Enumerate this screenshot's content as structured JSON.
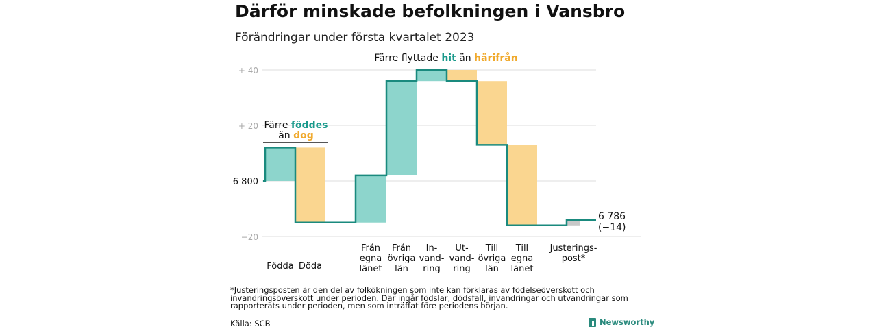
{
  "title": "Därför minskade befolkningen i Vansbro",
  "subtitle": "Förändringar under första kvartalet 2023",
  "colors": {
    "increase": "#8dd5cc",
    "decrease": "#fad690",
    "adjustment": "#c8c8c8",
    "line": "#1a8a7e",
    "grid": "#dddddd",
    "tick_label": "#aaaaaa",
    "teal_text": "#1a9a8c",
    "orange_text": "#f0a92c"
  },
  "chart_data": {
    "type": "waterfall",
    "start_value": 6800,
    "start_label": "6 800",
    "end_value": 6786,
    "end_label": "6 786",
    "end_change_label": "(−14)",
    "y_axis_label_ticks": [
      {
        "value": 40,
        "label": "+ 40"
      },
      {
        "value": 20,
        "label": "+ 20"
      },
      {
        "value": 0,
        "label": "6 800"
      },
      {
        "value": -20,
        "label": "−20"
      }
    ],
    "ylim": [
      -20,
      40
    ],
    "steps": [
      {
        "label": "Födda",
        "delta": 12,
        "kind": "increase"
      },
      {
        "label": "Döda",
        "delta": -27,
        "kind": "decrease"
      },
      {
        "label": "Från egna länet",
        "label_lines": [
          "Från",
          "egna",
          "länet"
        ],
        "delta": 17,
        "kind": "increase"
      },
      {
        "label": "Från övriga län",
        "label_lines": [
          "Från",
          "övriga",
          "län"
        ],
        "delta": 34,
        "kind": "increase"
      },
      {
        "label": "Invandring",
        "label_lines": [
          "In-",
          "vand-",
          "ring"
        ],
        "delta": 4,
        "kind": "increase"
      },
      {
        "label": "Utvandring",
        "label_lines": [
          "Ut-",
          "vand-",
          "ring"
        ],
        "delta": -4,
        "kind": "decrease"
      },
      {
        "label": "Till övriga län",
        "label_lines": [
          "Till",
          "övriga",
          "län"
        ],
        "delta": -23,
        "kind": "decrease"
      },
      {
        "label": "Till egna länet",
        "label_lines": [
          "Till",
          "egna",
          "länet"
        ],
        "delta": -29,
        "kind": "decrease"
      },
      {
        "label": "Justeringspost*",
        "label_lines": [
          "Justerings-",
          "post*"
        ],
        "delta": 2,
        "kind": "adjustment"
      }
    ],
    "annotations": [
      {
        "text_parts": [
          "Färre ",
          "föddes"
        ],
        "text_parts_2": [
          "än ",
          "dog"
        ]
      },
      {
        "text_parts": [
          "Färre flyttade ",
          "hit",
          " än ",
          "härifrån"
        ]
      }
    ]
  },
  "footnote": "*Justeringsposten är den del av folkökningen som inte kan förklaras av födelseöverskott och invandringsöverskott under perioden. Där ingår födslar, dödsfall, invandringar och utvandringar som rapporterats under perioden, men som inträffat före periodens början.",
  "source": "Källa: SCB",
  "brand": "Newsworthy",
  "brand_icon": "bar-chart-icon"
}
